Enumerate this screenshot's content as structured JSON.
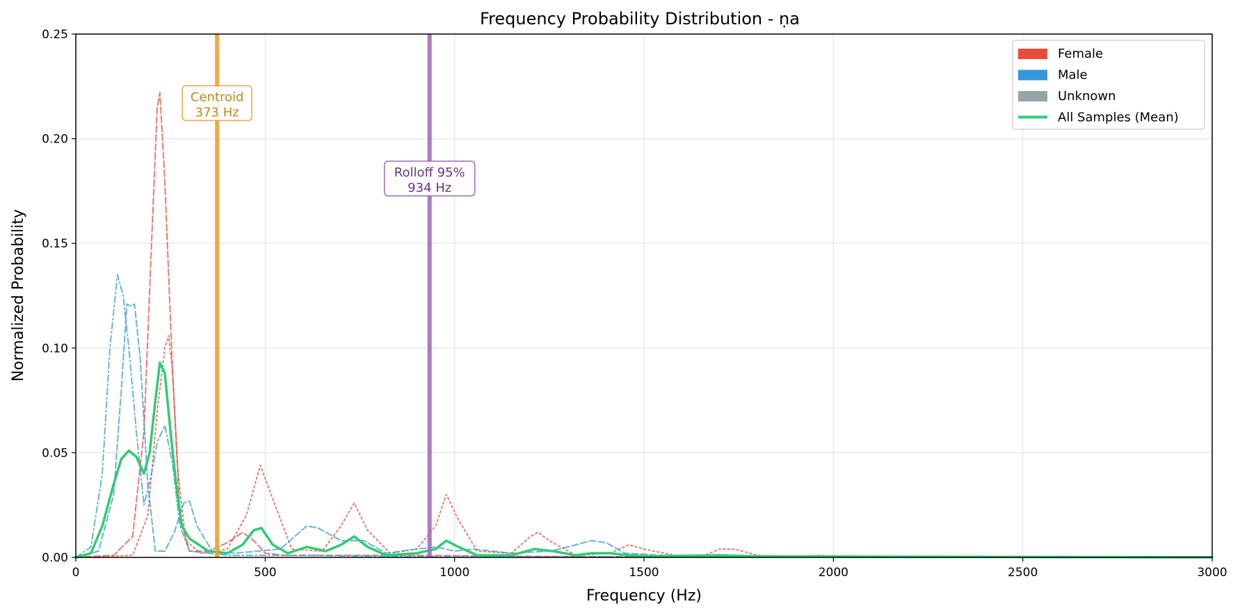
{
  "chart_data": {
    "type": "line",
    "title": "Frequency Probability Distribution - ṇa",
    "xlabel": "Frequency (Hz)",
    "ylabel": "Normalized Probability",
    "xlim": [
      0,
      3000
    ],
    "ylim": [
      0,
      0.25
    ],
    "xticks": [
      0,
      500,
      1000,
      1500,
      2000,
      2500,
      3000
    ],
    "yticks": [
      0.0,
      0.05,
      0.1,
      0.15,
      0.2,
      0.25
    ],
    "xtick_labels": [
      "0",
      "500",
      "1000",
      "1500",
      "2000",
      "2500",
      "3000"
    ],
    "ytick_labels": [
      "0.00",
      "0.05",
      "0.10",
      "0.15",
      "0.20",
      "0.25"
    ],
    "grid": true,
    "legend_position": "top-right",
    "legend": [
      {
        "label": "Female",
        "color": "#e74c3c",
        "kind": "patch"
      },
      {
        "label": "Male",
        "color": "#3498db",
        "kind": "patch"
      },
      {
        "label": "Unknown",
        "color": "#95a5a6",
        "kind": "patch"
      },
      {
        "label": "All Samples (Mean)",
        "color": "#2ecc71",
        "kind": "line"
      }
    ],
    "series": [
      {
        "group": "Female",
        "style": "dashed",
        "color": "#e74c3c",
        "width": 2,
        "opacity": 0.75,
        "x": [
          0,
          100,
          150,
          180,
          200,
          215,
          222,
          235,
          255,
          275,
          300,
          350,
          400,
          440,
          470,
          500,
          550,
          600,
          700,
          900,
          1200,
          1500,
          2000,
          3000
        ],
        "y": [
          0,
          0.001,
          0.01,
          0.06,
          0.15,
          0.215,
          0.222,
          0.18,
          0.09,
          0.02,
          0.003,
          0.003,
          0.007,
          0.012,
          0.008,
          0.002,
          0.001,
          0.001,
          0.001,
          0.001,
          0.0005,
          0.0003,
          0.0002,
          0
        ]
      },
      {
        "group": "Female",
        "style": "dotted",
        "color": "#e74c3c",
        "width": 2,
        "opacity": 0.75,
        "x": [
          0,
          150,
          190,
          215,
          235,
          245,
          255,
          270,
          290,
          330,
          400,
          450,
          487,
          520,
          570,
          650,
          700,
          735,
          770,
          830,
          900,
          950,
          978,
          1010,
          1060,
          1150,
          1200,
          1220,
          1250,
          1320,
          1410,
          1460,
          1500,
          1580,
          1660,
          1700,
          1740,
          1800,
          1900,
          1960,
          2000,
          2100,
          3000
        ],
        "y": [
          0,
          0.001,
          0.02,
          0.07,
          0.1,
          0.106,
          0.09,
          0.04,
          0.008,
          0.002,
          0.004,
          0.02,
          0.044,
          0.028,
          0.004,
          0.003,
          0.015,
          0.026,
          0.013,
          0.002,
          0.004,
          0.015,
          0.03,
          0.018,
          0.003,
          0.002,
          0.01,
          0.012,
          0.008,
          0.001,
          0.002,
          0.006,
          0.004,
          0.001,
          0.001,
          0.004,
          0.004,
          0.001,
          0.0005,
          0.001,
          0.0005,
          0.0002,
          0
        ]
      },
      {
        "group": "Male",
        "style": "dashed",
        "color": "#3498db",
        "width": 2,
        "opacity": 0.75,
        "x": [
          0,
          60,
          100,
          120,
          135,
          145,
          155,
          170,
          190,
          210,
          235,
          260,
          285,
          300,
          320,
          360,
          420,
          480,
          540,
          610,
          640,
          700,
          760,
          820,
          900,
          950,
          1000,
          1050,
          1150,
          1250,
          1300,
          1360,
          1400,
          1450,
          1550,
          1700,
          2000,
          3000
        ],
        "y": [
          0,
          0.003,
          0.03,
          0.08,
          0.121,
          0.12,
          0.121,
          0.095,
          0.035,
          0.003,
          0.003,
          0.012,
          0.026,
          0.027,
          0.015,
          0.003,
          0.002,
          0.003,
          0.004,
          0.015,
          0.014,
          0.008,
          0.008,
          0.002,
          0.004,
          0.005,
          0.003,
          0.004,
          0.002,
          0.003,
          0.005,
          0.008,
          0.007,
          0.002,
          0.001,
          0.0005,
          0.0002,
          0
        ]
      },
      {
        "group": "Male",
        "style": "dashdot",
        "color": "#3498db",
        "width": 2,
        "opacity": 0.75,
        "x": [
          0,
          40,
          70,
          90,
          110,
          125,
          140,
          160,
          180,
          200,
          215,
          235,
          255,
          275,
          300,
          400,
          600,
          800,
          1000,
          3000
        ],
        "y": [
          0,
          0.005,
          0.04,
          0.1,
          0.135,
          0.125,
          0.1,
          0.06,
          0.025,
          0.04,
          0.055,
          0.063,
          0.045,
          0.015,
          0.003,
          0.001,
          0.001,
          0.0005,
          0.0003,
          0
        ]
      },
      {
        "group": "All Samples (Mean)",
        "style": "solid",
        "color": "#2ecc71",
        "width": 3.5,
        "opacity": 1,
        "x": [
          0,
          40,
          70,
          100,
          120,
          140,
          160,
          180,
          195,
          210,
          222,
          235,
          250,
          265,
          280,
          300,
          350,
          400,
          440,
          470,
          490,
          520,
          560,
          610,
          660,
          700,
          735,
          770,
          820,
          900,
          950,
          978,
          1010,
          1060,
          1150,
          1210,
          1260,
          1320,
          1360,
          1410,
          1460,
          1520,
          1600,
          1700,
          1800,
          2000,
          2500,
          3000
        ],
        "y": [
          0,
          0.002,
          0.015,
          0.035,
          0.047,
          0.051,
          0.048,
          0.04,
          0.05,
          0.075,
          0.093,
          0.088,
          0.06,
          0.035,
          0.015,
          0.009,
          0.003,
          0.002,
          0.006,
          0.013,
          0.014,
          0.006,
          0.002,
          0.005,
          0.003,
          0.006,
          0.01,
          0.005,
          0.001,
          0.002,
          0.004,
          0.008,
          0.005,
          0.001,
          0.001,
          0.004,
          0.003,
          0.001,
          0.002,
          0.002,
          0.001,
          0.0005,
          0.0008,
          0.001,
          0.0005,
          0.0004,
          0.0002,
          0.0001
        ]
      }
    ],
    "markers": [
      {
        "label_line1": "Centroid",
        "label_line2": "373 Hz",
        "x": 373,
        "label_y": 0.217,
        "line_color": "#f0a030",
        "text_color": "#c8841a",
        "box_border": "#e8a54a"
      },
      {
        "label_line1": "Rolloff 95%",
        "label_line2": "934 Hz",
        "x": 934,
        "label_y": 0.181,
        "line_color": "#a569bd",
        "text_color": "#6c3483",
        "box_border": "#9b6bbf"
      }
    ]
  }
}
